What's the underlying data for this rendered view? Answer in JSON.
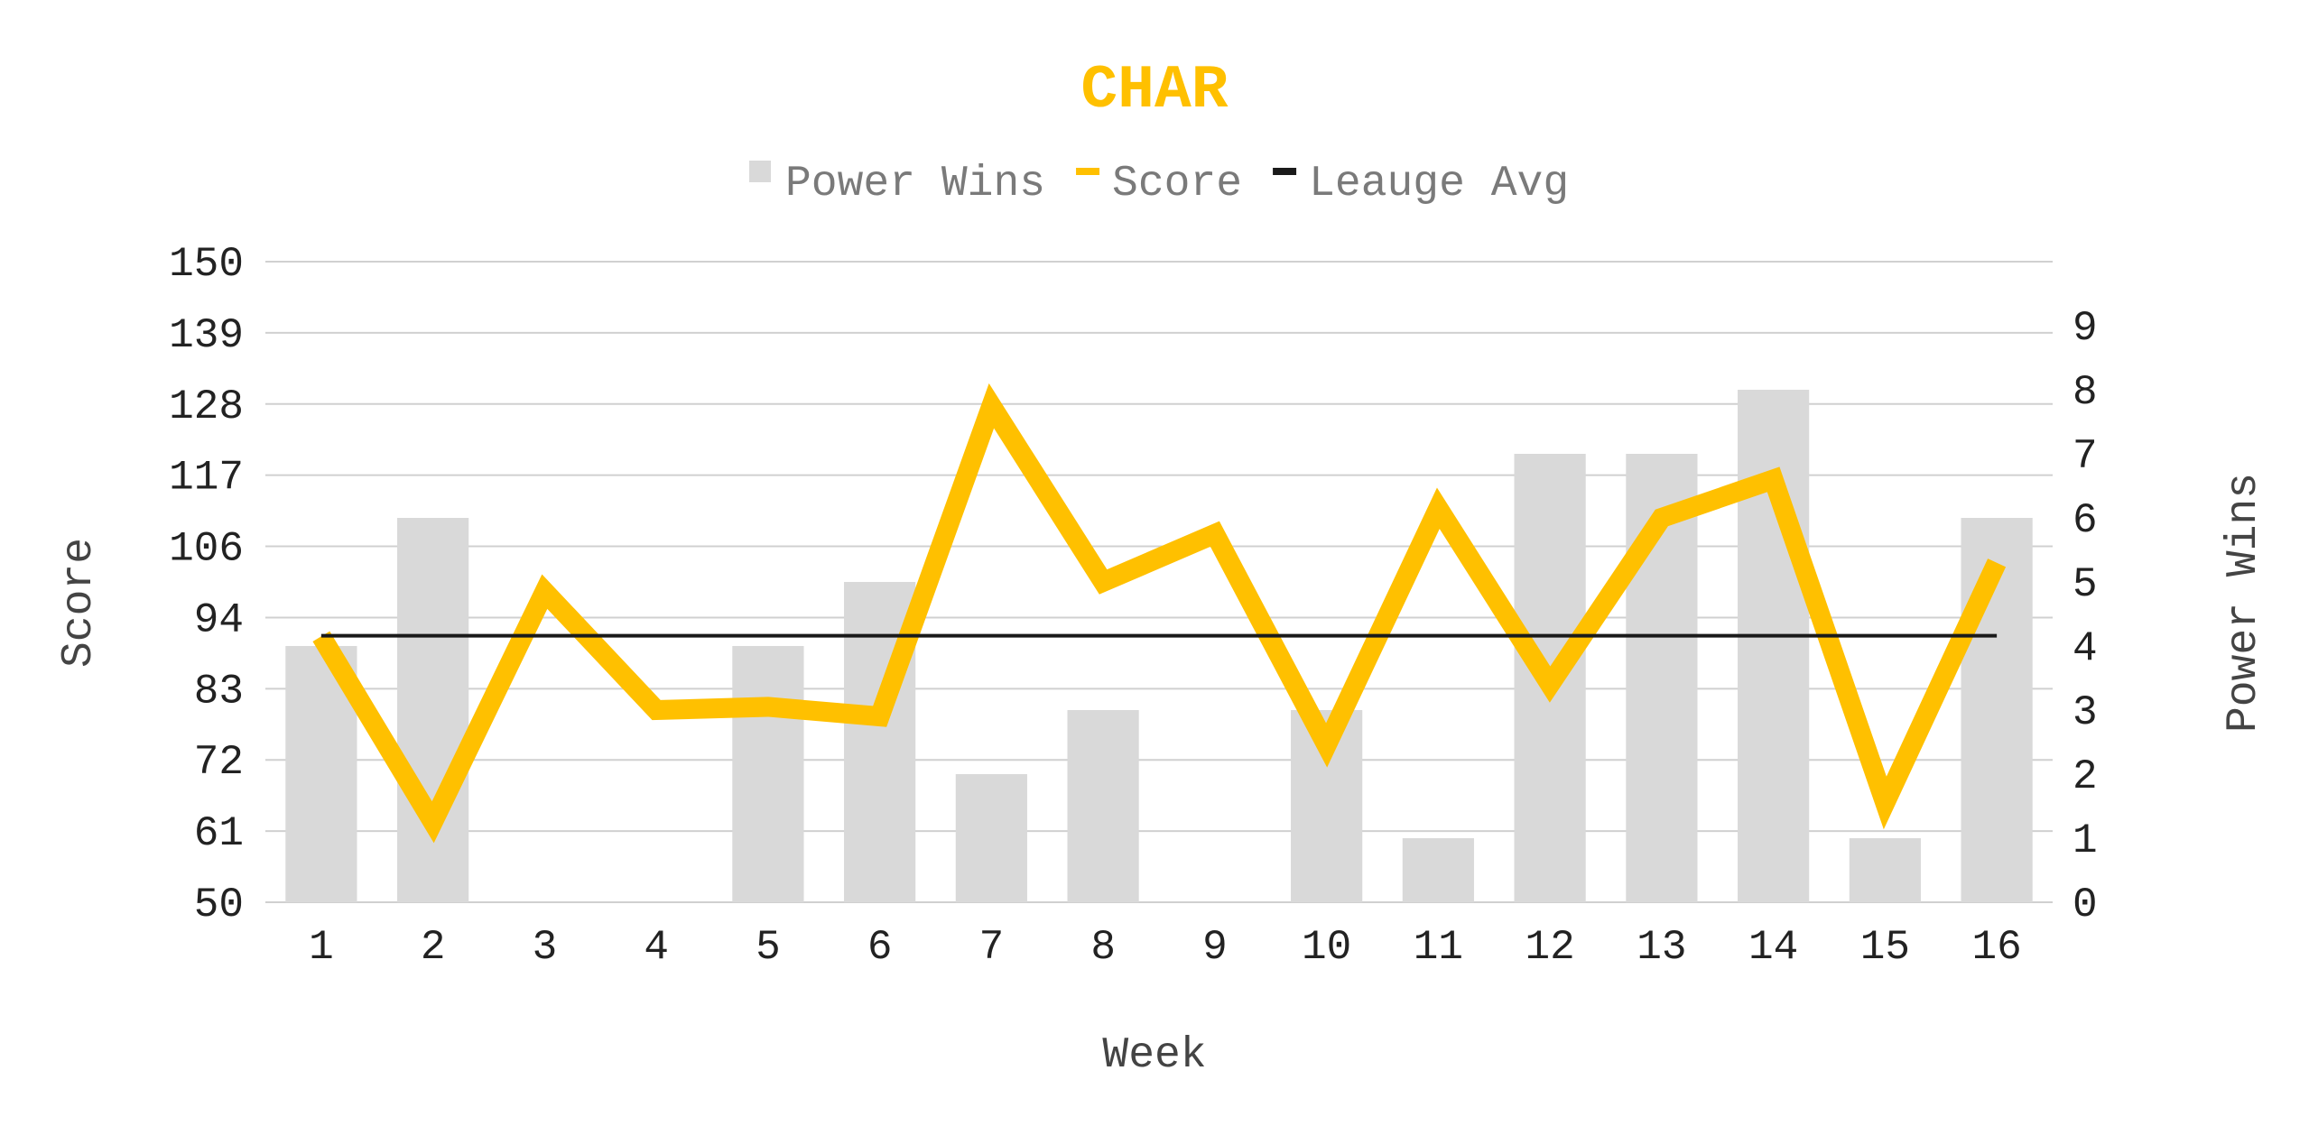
{
  "chart_data": {
    "type": "bar",
    "title": "CHAR",
    "xlabel": "Week",
    "ylabel": "Score",
    "y2label": "Power Wins",
    "categories": [
      "1",
      "2",
      "3",
      "4",
      "5",
      "6",
      "7",
      "8",
      "9",
      "10",
      "11",
      "12",
      "13",
      "14",
      "15",
      "16"
    ],
    "ylim": [
      50,
      150
    ],
    "yticks": [
      "150",
      "139",
      "128",
      "117",
      "106",
      "94",
      "83",
      "72",
      "61",
      "50"
    ],
    "y2lim": [
      0,
      10
    ],
    "y2ticks": [
      "0",
      "1",
      "2",
      "3",
      "4",
      "5",
      "6",
      "7",
      "8",
      "9"
    ],
    "grid": true,
    "legend_position": "top",
    "series": [
      {
        "name": "Power Wins",
        "type": "bar",
        "axis": "right",
        "color": "#d9d9d9",
        "values": [
          4,
          6,
          0,
          0,
          4,
          5,
          2,
          3,
          0,
          3,
          1,
          7,
          7,
          8,
          1,
          6
        ]
      },
      {
        "name": "Score",
        "type": "line",
        "axis": "left",
        "color": "#ffc000",
        "values": [
          91.5,
          62.5,
          98.5,
          80,
          80.5,
          79,
          127.5,
          100,
          107.5,
          74.5,
          111.5,
          84,
          110,
          116,
          65.5,
          103
        ]
      },
      {
        "name": "Leauge Avg",
        "type": "line",
        "axis": "left",
        "color": "#1a1a1a",
        "values": [
          91.6,
          91.6,
          91.6,
          91.6,
          91.6,
          91.6,
          91.6,
          91.6,
          91.6,
          91.6,
          91.6,
          91.6,
          91.6,
          91.6,
          91.6,
          91.6
        ]
      }
    ]
  },
  "colors": {
    "title": "#ffc000",
    "gridline": "#d0d0d0"
  }
}
